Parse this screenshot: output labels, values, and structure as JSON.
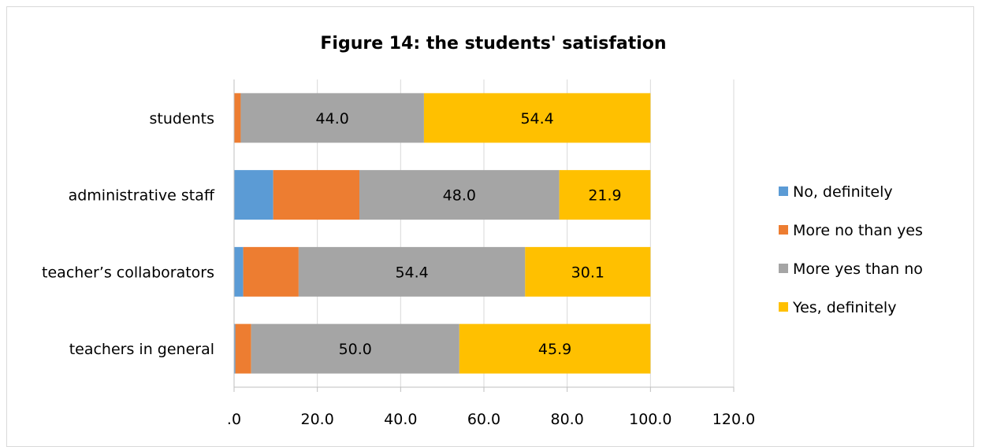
{
  "chart_data": {
    "type": "bar",
    "orientation": "horizontal",
    "stacked": true,
    "title": "Figure 14: the students' satisfation",
    "categories": [
      "students",
      "administrative staff",
      "teacher’s collaborators",
      "teachers in general"
    ],
    "series": [
      {
        "name": "No, definitely",
        "color": "#5b9bd5",
        "values": [
          0.0,
          9.4,
          2.2,
          0.3
        ]
      },
      {
        "name": "More no than yes",
        "color": "#ed7d31",
        "values": [
          1.6,
          20.7,
          13.3,
          3.8
        ]
      },
      {
        "name": "More yes than no",
        "color": "#a5a5a5",
        "values": [
          44.0,
          48.0,
          54.4,
          50.0
        ],
        "labels": [
          "44.0",
          "48.0",
          "54.4",
          "50.0"
        ]
      },
      {
        "name": "Yes, definitely",
        "color": "#ffc000",
        "values": [
          54.4,
          21.9,
          30.1,
          45.9
        ],
        "labels": [
          "54.4",
          "21.9",
          "30.1",
          "45.9"
        ]
      }
    ],
    "xlim": [
      0,
      120
    ],
    "xticks": [
      ".0",
      "20.0",
      "40.0",
      "60.0",
      "80.0",
      "100.0",
      "120.0"
    ],
    "grid": true,
    "legend_position": "right"
  }
}
